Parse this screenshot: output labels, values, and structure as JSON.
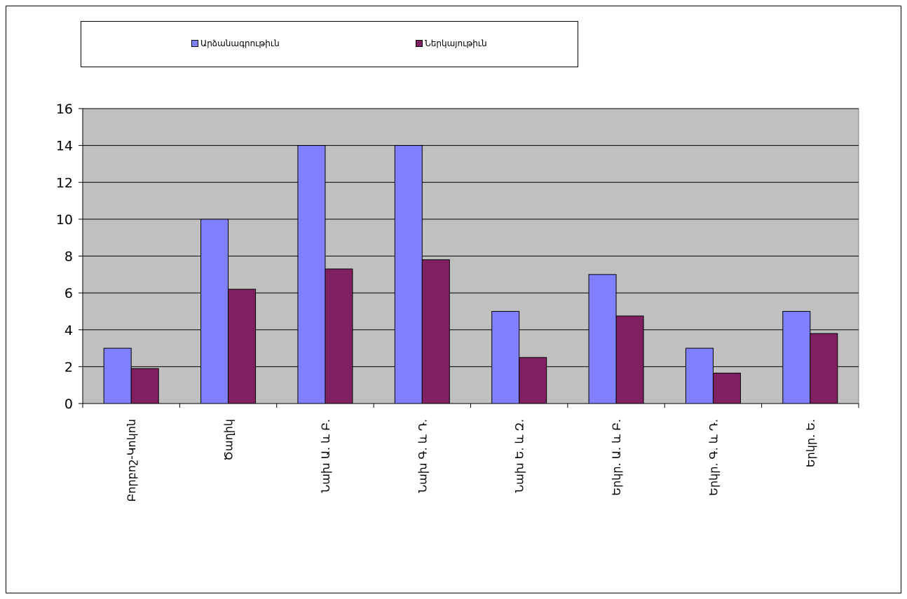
{
  "chart_data": {
    "type": "bar",
    "categories": [
      "Բորբոշ-Կոկոն",
      "Ծաղիկ",
      "Նախ Ա. և Բ.",
      "Նախ Գ. և Դ.",
      "Նախ Ե. և Զ.",
      "Երկր. Ա. և Բ.",
      "Երկր. Գ. և Դ.",
      "Երկր. Ե."
    ],
    "series": [
      {
        "name": "Արձանագրութիւն",
        "values": [
          3,
          10,
          14,
          14,
          5,
          7,
          3,
          5
        ],
        "color": "#8080ff"
      },
      {
        "name": "Ներկայութիւն",
        "values": [
          1.9,
          6.2,
          7.3,
          7.8,
          2.5,
          4.75,
          1.65,
          3.8
        ],
        "color": "#802060"
      }
    ],
    "y_ticks": [
      "0",
      "2",
      "4",
      "6",
      "8",
      "10",
      "12",
      "14",
      "16"
    ],
    "ylim": [
      0,
      16
    ],
    "grid": true,
    "legend": "top",
    "plot_background": "#c0c0c0",
    "title": "",
    "xlabel": "",
    "ylabel": ""
  }
}
